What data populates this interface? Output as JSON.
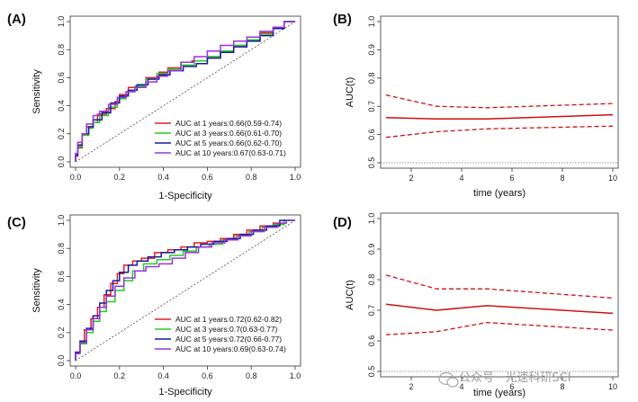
{
  "panel_labels": [
    "(A)",
    "(B)",
    "(C)",
    "(D)"
  ],
  "watermark": {
    "text": "公众号 · 光速科研SCI",
    "icon": "wechat-icon"
  },
  "chart_data": [
    {
      "type": "line",
      "panel": "(A)",
      "xlabel": "1-Specificity",
      "ylabel": "Sensitivity",
      "xlim": [
        0,
        1
      ],
      "ylim": [
        0,
        1
      ],
      "xticks": [
        "0.0",
        "0.2",
        "0.4",
        "0.6",
        "0.8",
        "1.0"
      ],
      "yticks": [
        "0.0",
        "0.2",
        "0.4",
        "0.6",
        "0.8",
        "1.0"
      ],
      "reference_line": [
        [
          0,
          0
        ],
        [
          1,
          1
        ]
      ],
      "legend_position": "bottom-right",
      "series": [
        {
          "name": "AUC at 1 years:0.66(0.59-0.74)",
          "color": "#e02020",
          "points": [
            [
              0,
              0
            ],
            [
              0.01,
              0.04
            ],
            [
              0.03,
              0.1
            ],
            [
              0.05,
              0.19
            ],
            [
              0.08,
              0.25
            ],
            [
              0.1,
              0.28
            ],
            [
              0.14,
              0.34
            ],
            [
              0.18,
              0.38
            ],
            [
              0.2,
              0.43
            ],
            [
              0.24,
              0.48
            ],
            [
              0.28,
              0.53
            ],
            [
              0.32,
              0.55
            ],
            [
              0.38,
              0.6
            ],
            [
              0.42,
              0.64
            ],
            [
              0.48,
              0.67
            ],
            [
              0.53,
              0.71
            ],
            [
              0.6,
              0.72
            ],
            [
              0.66,
              0.75
            ],
            [
              0.72,
              0.79
            ],
            [
              0.78,
              0.83
            ],
            [
              0.84,
              0.87
            ],
            [
              0.9,
              0.92
            ],
            [
              0.95,
              0.96
            ],
            [
              1,
              1
            ]
          ]
        },
        {
          "name": "AUC at 3 years:0.66(0.61-0.70)",
          "color": "#22cc22",
          "points": [
            [
              0,
              0
            ],
            [
              0.01,
              0.05
            ],
            [
              0.03,
              0.11
            ],
            [
              0.06,
              0.19
            ],
            [
              0.08,
              0.24
            ],
            [
              0.11,
              0.28
            ],
            [
              0.15,
              0.33
            ],
            [
              0.19,
              0.39
            ],
            [
              0.23,
              0.45
            ],
            [
              0.27,
              0.5
            ],
            [
              0.32,
              0.54
            ],
            [
              0.37,
              0.59
            ],
            [
              0.42,
              0.63
            ],
            [
              0.48,
              0.66
            ],
            [
              0.54,
              0.69
            ],
            [
              0.6,
              0.72
            ],
            [
              0.66,
              0.75
            ],
            [
              0.72,
              0.79
            ],
            [
              0.78,
              0.83
            ],
            [
              0.84,
              0.87
            ],
            [
              0.9,
              0.91
            ],
            [
              0.95,
              0.95
            ],
            [
              1,
              1
            ]
          ]
        },
        {
          "name": "AUC at 5 years:0.66(0.62-0.70)",
          "color": "#1a1a9a",
          "points": [
            [
              0,
              0
            ],
            [
              0.01,
              0.05
            ],
            [
              0.03,
              0.12
            ],
            [
              0.06,
              0.2
            ],
            [
              0.08,
              0.25
            ],
            [
              0.12,
              0.3
            ],
            [
              0.16,
              0.35
            ],
            [
              0.2,
              0.42
            ],
            [
              0.24,
              0.47
            ],
            [
              0.28,
              0.51
            ],
            [
              0.33,
              0.55
            ],
            [
              0.38,
              0.59
            ],
            [
              0.43,
              0.62
            ],
            [
              0.49,
              0.65
            ],
            [
              0.55,
              0.68
            ],
            [
              0.6,
              0.7
            ],
            [
              0.66,
              0.74
            ],
            [
              0.72,
              0.78
            ],
            [
              0.78,
              0.82
            ],
            [
              0.84,
              0.86
            ],
            [
              0.9,
              0.9
            ],
            [
              0.95,
              0.95
            ],
            [
              1,
              1
            ]
          ]
        },
        {
          "name": "AUC at 10 years:0.67(0.63-0.71)",
          "color": "#9933dd",
          "points": [
            [
              0,
              0
            ],
            [
              0.01,
              0.06
            ],
            [
              0.03,
              0.14
            ],
            [
              0.05,
              0.2
            ],
            [
              0.08,
              0.27
            ],
            [
              0.11,
              0.33
            ],
            [
              0.15,
              0.36
            ],
            [
              0.19,
              0.41
            ],
            [
              0.23,
              0.46
            ],
            [
              0.27,
              0.5
            ],
            [
              0.32,
              0.53
            ],
            [
              0.37,
              0.57
            ],
            [
              0.42,
              0.61
            ],
            [
              0.48,
              0.65
            ],
            [
              0.54,
              0.71
            ],
            [
              0.6,
              0.75
            ],
            [
              0.66,
              0.79
            ],
            [
              0.72,
              0.83
            ],
            [
              0.78,
              0.86
            ],
            [
              0.84,
              0.89
            ],
            [
              0.9,
              0.93
            ],
            [
              0.95,
              0.96
            ],
            [
              1,
              1
            ]
          ]
        }
      ]
    },
    {
      "type": "line",
      "panel": "(B)",
      "xlabel": "time (years)",
      "ylabel": "AUC(t)",
      "xlim": [
        1,
        10
      ],
      "ylim": [
        0.5,
        1.0
      ],
      "xticks": [
        2,
        4,
        6,
        8,
        10
      ],
      "yticks": [
        "0.5",
        "0.6",
        "0.7",
        "0.8",
        "0.9",
        "1.0"
      ],
      "reference_hline": 0.5,
      "x": [
        1,
        3,
        5,
        10
      ],
      "series": [
        {
          "role": "auc",
          "color": "#cc1111",
          "style": "solid",
          "values": [
            0.66,
            0.655,
            0.655,
            0.67
          ]
        },
        {
          "role": "upper_ci",
          "color": "#cc1111",
          "style": "dashed",
          "values": [
            0.74,
            0.7,
            0.695,
            0.71
          ]
        },
        {
          "role": "lower_ci",
          "color": "#cc1111",
          "style": "dashed",
          "values": [
            0.59,
            0.61,
            0.62,
            0.63
          ]
        }
      ]
    },
    {
      "type": "line",
      "panel": "(C)",
      "xlabel": "1-Specificity",
      "ylabel": "Sensitivity",
      "xlim": [
        0,
        1
      ],
      "ylim": [
        0,
        1
      ],
      "xticks": [
        "0.0",
        "0.2",
        "0.4",
        "0.6",
        "0.8",
        "1.0"
      ],
      "yticks": [
        "0.0",
        "0.2",
        "0.4",
        "0.6",
        "0.8",
        "1.0"
      ],
      "reference_line": [
        [
          0,
          0
        ],
        [
          1,
          1
        ]
      ],
      "legend_position": "bottom-right",
      "series": [
        {
          "name": "AUC at 1 years:0.72(0.62-0.82)",
          "color": "#e02020",
          "points": [
            [
              0,
              0
            ],
            [
              0.02,
              0.06
            ],
            [
              0.04,
              0.12
            ],
            [
              0.07,
              0.22
            ],
            [
              0.1,
              0.3
            ],
            [
              0.13,
              0.38
            ],
            [
              0.16,
              0.47
            ],
            [
              0.19,
              0.55
            ],
            [
              0.22,
              0.62
            ],
            [
              0.26,
              0.68
            ],
            [
              0.3,
              0.71
            ],
            [
              0.36,
              0.73
            ],
            [
              0.42,
              0.77
            ],
            [
              0.48,
              0.79
            ],
            [
              0.54,
              0.81
            ],
            [
              0.6,
              0.84
            ],
            [
              0.66,
              0.85
            ],
            [
              0.72,
              0.87
            ],
            [
              0.78,
              0.9
            ],
            [
              0.84,
              0.93
            ],
            [
              0.9,
              0.96
            ],
            [
              0.95,
              0.98
            ],
            [
              1,
              1
            ]
          ]
        },
        {
          "name": "AUC at 3 years:0.7(0.63-0.77)",
          "color": "#22cc22",
          "points": [
            [
              0,
              0
            ],
            [
              0.02,
              0.05
            ],
            [
              0.05,
              0.12
            ],
            [
              0.08,
              0.2
            ],
            [
              0.11,
              0.28
            ],
            [
              0.14,
              0.35
            ],
            [
              0.18,
              0.42
            ],
            [
              0.22,
              0.5
            ],
            [
              0.26,
              0.57
            ],
            [
              0.31,
              0.64
            ],
            [
              0.37,
              0.69
            ],
            [
              0.43,
              0.72
            ],
            [
              0.49,
              0.75
            ],
            [
              0.55,
              0.78
            ],
            [
              0.61,
              0.81
            ],
            [
              0.67,
              0.83
            ],
            [
              0.73,
              0.86
            ],
            [
              0.79,
              0.89
            ],
            [
              0.85,
              0.92
            ],
            [
              0.9,
              0.95
            ],
            [
              0.95,
              0.97
            ],
            [
              1,
              1
            ]
          ]
        },
        {
          "name": "AUC at 5 years:0.72(0.66-0.77)",
          "color": "#1a1a9a",
          "points": [
            [
              0,
              0
            ],
            [
              0.02,
              0.06
            ],
            [
              0.05,
              0.14
            ],
            [
              0.08,
              0.23
            ],
            [
              0.11,
              0.32
            ],
            [
              0.14,
              0.41
            ],
            [
              0.17,
              0.5
            ],
            [
              0.2,
              0.57
            ],
            [
              0.24,
              0.63
            ],
            [
              0.28,
              0.68
            ],
            [
              0.33,
              0.71
            ],
            [
              0.39,
              0.74
            ],
            [
              0.45,
              0.77
            ],
            [
              0.51,
              0.79
            ],
            [
              0.57,
              0.81
            ],
            [
              0.63,
              0.83
            ],
            [
              0.69,
              0.85
            ],
            [
              0.75,
              0.87
            ],
            [
              0.81,
              0.9
            ],
            [
              0.87,
              0.93
            ],
            [
              0.93,
              0.96
            ],
            [
              1,
              1
            ]
          ]
        },
        {
          "name": "AUC at 10 years:0.69(0.63-0.74)",
          "color": "#9933dd",
          "points": [
            [
              0,
              0
            ],
            [
              0.02,
              0.05
            ],
            [
              0.05,
              0.13
            ],
            [
              0.08,
              0.22
            ],
            [
              0.11,
              0.3
            ],
            [
              0.14,
              0.38
            ],
            [
              0.18,
              0.46
            ],
            [
              0.22,
              0.53
            ],
            [
              0.27,
              0.59
            ],
            [
              0.32,
              0.64
            ],
            [
              0.38,
              0.67
            ],
            [
              0.44,
              0.69
            ],
            [
              0.5,
              0.73
            ],
            [
              0.56,
              0.77
            ],
            [
              0.62,
              0.81
            ],
            [
              0.68,
              0.84
            ],
            [
              0.74,
              0.86
            ],
            [
              0.8,
              0.89
            ],
            [
              0.86,
              0.92
            ],
            [
              0.92,
              0.95
            ],
            [
              0.96,
              0.98
            ],
            [
              1,
              1
            ]
          ]
        }
      ]
    },
    {
      "type": "line",
      "panel": "(D)",
      "xlabel": "time (years)",
      "ylabel": "AUC(t)",
      "xlim": [
        1,
        10
      ],
      "ylim": [
        0.5,
        1.0
      ],
      "xticks": [
        2,
        4,
        6,
        8,
        10
      ],
      "yticks": [
        "0.5",
        "0.6",
        "0.7",
        "0.8",
        "0.9",
        "1.0"
      ],
      "reference_hline": 0.5,
      "x": [
        1,
        3,
        5,
        10
      ],
      "series": [
        {
          "role": "auc",
          "color": "#cc1111",
          "style": "solid",
          "values": [
            0.72,
            0.7,
            0.715,
            0.69
          ]
        },
        {
          "role": "upper_ci",
          "color": "#cc1111",
          "style": "dashed",
          "values": [
            0.815,
            0.77,
            0.77,
            0.74
          ]
        },
        {
          "role": "lower_ci",
          "color": "#cc1111",
          "style": "dashed",
          "values": [
            0.62,
            0.63,
            0.66,
            0.635
          ]
        }
      ]
    }
  ]
}
